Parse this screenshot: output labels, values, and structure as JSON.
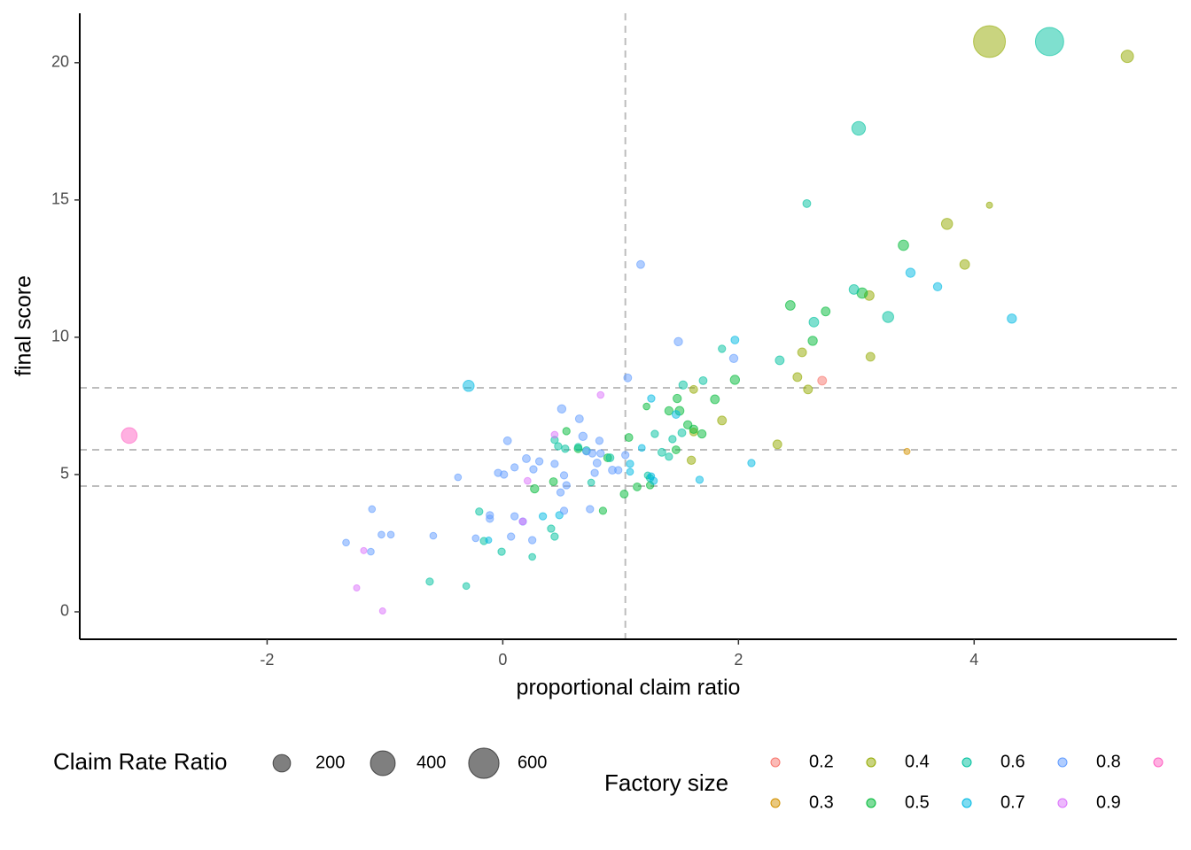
{
  "chart_data": {
    "type": "scatter",
    "x_label": "proportional claim ratio",
    "y_label": "final score",
    "xlim": [
      -3.59,
      5.72
    ],
    "ylim": [
      -1.0,
      21.8
    ],
    "xticks": [
      -2,
      0,
      2,
      4
    ],
    "yticks": [
      0,
      5,
      10,
      15,
      20
    ],
    "vlines": [
      1.04
    ],
    "hlines": [
      8.16,
      5.9,
      4.58
    ],
    "size_legend": {
      "title": "Claim Rate Ratio",
      "values": [
        200,
        400,
        600
      ]
    },
    "color_legend_title": "Factory size",
    "series": [
      {
        "name": "0.2",
        "color": "#F8766D",
        "x": [
          2.71
        ],
        "values": [
          8.42
        ],
        "sizes": [
          50
        ]
      },
      {
        "name": "0.3",
        "color": "#D39200",
        "x": [
          3.43
        ],
        "values": [
          5.84
        ],
        "sizes": [
          25
        ]
      },
      {
        "name": "0.4",
        "color": "#93AA00",
        "x": [
          4.13,
          5.3,
          4.13,
          3.77,
          3.92,
          3.11,
          3.12,
          2.54,
          2.5,
          2.59,
          2.33,
          1.86,
          1.62,
          1.62,
          1.6
        ],
        "values": [
          20.77,
          20.23,
          14.81,
          14.13,
          12.65,
          11.52,
          9.29,
          9.45,
          8.55,
          8.1,
          6.1,
          6.97,
          8.1,
          6.55,
          5.52
        ],
        "sizes": [
          660,
          100,
          25,
          80,
          60,
          60,
          50,
          50,
          50,
          50,
          50,
          50,
          40,
          40,
          45
        ]
      },
      {
        "name": "0.5",
        "color": "#00BA38",
        "x": [
          3.4,
          2.44,
          2.74,
          2.63,
          3.05,
          1.97,
          1.8,
          1.48,
          1.5,
          1.41,
          1.57,
          1.62,
          1.69,
          1.47,
          1.22,
          1.14,
          1.03,
          1.25,
          0.85,
          0.89,
          0.54,
          0.64,
          0.27,
          0.43,
          1.07
        ],
        "values": [
          13.35,
          11.16,
          10.94,
          9.87,
          11.61,
          8.45,
          7.74,
          7.77,
          7.32,
          7.32,
          6.81,
          6.65,
          6.48,
          5.9,
          7.48,
          4.55,
          4.29,
          4.61,
          3.68,
          5.61,
          6.58,
          5.94,
          4.48,
          4.74,
          6.35
        ],
        "sizes": [
          70,
          60,
          50,
          55,
          70,
          55,
          50,
          45,
          50,
          45,
          45,
          45,
          45,
          40,
          30,
          40,
          40,
          35,
          35,
          40,
          35,
          40,
          45,
          40,
          40
        ]
      },
      {
        "name": "0.6",
        "color": "#00C19F",
        "x": [
          4.64,
          3.02,
          2.58,
          2.98,
          3.27,
          2.64,
          2.35,
          1.86,
          1.7,
          1.53,
          1.29,
          1.35,
          1.41,
          1.52,
          1.44,
          1.25,
          1.23,
          0.91,
          0.71,
          0.44,
          0.47,
          0.53,
          0.41,
          0.44,
          0.64,
          0.75,
          -0.01,
          -0.16,
          -0.2,
          -0.31,
          -0.62,
          0.25
        ],
        "values": [
          20.77,
          17.61,
          14.87,
          11.74,
          10.74,
          10.55,
          9.16,
          9.58,
          8.42,
          8.26,
          6.48,
          5.81,
          5.65,
          6.52,
          6.29,
          4.87,
          4.97,
          5.61,
          5.87,
          6.26,
          6.03,
          5.94,
          3.03,
          2.74,
          6.0,
          4.71,
          2.19,
          2.58,
          3.65,
          0.94,
          1.1,
          2.0
        ],
        "sizes": [
          520,
          120,
          40,
          60,
          80,
          60,
          50,
          35,
          40,
          45,
          35,
          40,
          35,
          40,
          35,
          35,
          30,
          40,
          40,
          35,
          35,
          35,
          35,
          35,
          35,
          30,
          35,
          35,
          35,
          30,
          35,
          30
        ]
      },
      {
        "name": "0.7",
        "color": "#00B9E3",
        "x": [
          -0.29,
          3.46,
          3.69,
          4.32,
          1.97,
          1.26,
          1.47,
          2.11,
          1.67,
          1.28,
          1.08,
          1.08,
          1.18,
          1.26,
          0.34,
          0.48,
          -0.12
        ],
        "values": [
          8.23,
          12.35,
          11.84,
          10.68,
          9.9,
          7.77,
          7.19,
          5.42,
          4.81,
          4.77,
          5.39,
          5.1,
          5.97,
          4.94,
          3.48,
          3.52,
          2.61
        ],
        "sizes": [
          80,
          55,
          45,
          55,
          40,
          35,
          40,
          35,
          35,
          35,
          35,
          30,
          30,
          30,
          35,
          35,
          25
        ]
      },
      {
        "name": "0.8",
        "color": "#619CFF",
        "x": [
          1.17,
          1.49,
          1.96,
          1.06,
          0.5,
          0.65,
          0.68,
          0.82,
          0.76,
          0.71,
          0.83,
          0.8,
          0.93,
          0.98,
          1.04,
          0.78,
          0.04,
          0.2,
          0.31,
          0.1,
          0.26,
          -0.04,
          0.01,
          0.44,
          0.52,
          0.54,
          0.49,
          0.52,
          0.74,
          -0.38,
          0.1,
          -0.11,
          -0.11,
          0.17,
          0.07,
          -0.23,
          0.25,
          -0.59,
          -0.95,
          -1.03,
          -1.11,
          -1.33,
          -1.12
        ],
        "values": [
          12.65,
          9.84,
          9.23,
          8.52,
          7.39,
          7.03,
          6.39,
          6.23,
          5.77,
          5.84,
          5.77,
          5.42,
          5.16,
          5.16,
          5.71,
          5.06,
          6.23,
          5.58,
          5.48,
          5.26,
          5.19,
          5.06,
          5.0,
          5.39,
          4.97,
          4.61,
          4.35,
          3.68,
          3.74,
          4.9,
          3.48,
          3.52,
          3.39,
          3.29,
          2.74,
          2.68,
          2.61,
          2.77,
          2.81,
          2.81,
          3.74,
          2.52,
          2.19
        ],
        "sizes": [
          40,
          45,
          45,
          40,
          45,
          40,
          45,
          35,
          35,
          35,
          35,
          40,
          40,
          35,
          35,
          35,
          40,
          40,
          35,
          35,
          35,
          35,
          35,
          35,
          35,
          35,
          35,
          35,
          35,
          30,
          35,
          35,
          35,
          35,
          35,
          30,
          35,
          30,
          30,
          30,
          30,
          30,
          30
        ]
      },
      {
        "name": "0.9",
        "color": "#DB72FB",
        "x": [
          0.83,
          0.44,
          0.21,
          0.17,
          -1.18,
          -1.24,
          -1.02
        ],
        "values": [
          7.9,
          6.45,
          4.77,
          3.29,
          2.23,
          0.87,
          0.03
        ],
        "sizes": [
          30,
          30,
          30,
          30,
          25,
          25,
          25
        ]
      },
      {
        "name": null,
        "color": "#FF61C3",
        "x": [
          -3.17
        ],
        "values": [
          6.42
        ],
        "sizes": [
          160
        ]
      }
    ]
  }
}
